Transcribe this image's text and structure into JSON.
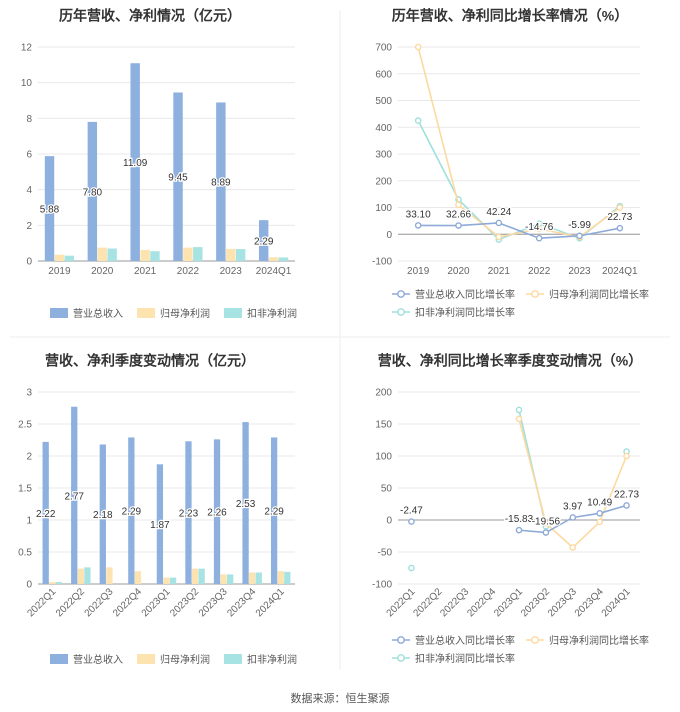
{
  "source": "数据来源：恒生聚源",
  "legend_labels": {
    "rev": "营业总收入",
    "net": "归母净利润",
    "ded": "扣非净利润",
    "rev_g": "营业总收入同比增长率",
    "net_g": "归母净利润同比增长率",
    "ded_g": "扣非净利润同比增长率"
  },
  "colors": {
    "rev": "#8eb0de",
    "net": "#fde3b0",
    "ded": "#a8e3e3",
    "rev_line": "#8eaad8",
    "net_line": "#fdd9a0",
    "ded_line": "#9fe0dc"
  },
  "chart_data": [
    {
      "type": "bar",
      "title": "历年营收、净利情况（亿元）",
      "categories": [
        "2019",
        "2020",
        "2021",
        "2022",
        "2023",
        "2024Q1"
      ],
      "ylim": [
        0,
        12
      ],
      "yticks": [
        0,
        2,
        4,
        6,
        8,
        10,
        12
      ],
      "series": [
        {
          "name": "营业总收入",
          "values": [
            5.88,
            7.8,
            11.09,
            9.45,
            8.89,
            2.29
          ],
          "labels": [
            "5.88",
            "7.80",
            "11.09",
            "9.45",
            "8.89",
            "2.29"
          ]
        },
        {
          "name": "归母净利润",
          "values": [
            0.35,
            0.75,
            0.62,
            0.75,
            0.68,
            0.21
          ]
        },
        {
          "name": "扣非净利润",
          "values": [
            0.3,
            0.7,
            0.55,
            0.78,
            0.67,
            0.2
          ]
        }
      ],
      "legend": "bottom"
    },
    {
      "type": "line",
      "title": "历年营收、净利同比增长率情况（%）",
      "categories": [
        "2019",
        "2020",
        "2021",
        "2022",
        "2023",
        "2024Q1"
      ],
      "ylim": [
        -100,
        700
      ],
      "yticks": [
        -100,
        0,
        100,
        200,
        300,
        400,
        500,
        600,
        700
      ],
      "series": [
        {
          "name": "营业总收入同比增长率",
          "values": [
            33.1,
            32.66,
            42.24,
            -14.76,
            -5.99,
            22.73
          ],
          "labels": [
            "33.10",
            "32.66",
            "42.24",
            "-14.76",
            "-5.99",
            "22.73"
          ]
        },
        {
          "name": "归母净利润同比增长率",
          "values": [
            700,
            110,
            -10,
            20,
            -10,
            100
          ]
        },
        {
          "name": "扣非净利润同比增长率",
          "values": [
            425,
            130,
            -20,
            40,
            -15,
            105
          ]
        }
      ],
      "legend": "bottom"
    },
    {
      "type": "bar",
      "title": "营收、净利季度变动情况（亿元）",
      "categories": [
        "2022Q1",
        "2022Q2",
        "2022Q3",
        "2022Q4",
        "2023Q1",
        "2023Q2",
        "2023Q3",
        "2023Q4",
        "2024Q1"
      ],
      "ylim": [
        0,
        3
      ],
      "yticks": [
        0,
        0.5,
        1,
        1.5,
        2,
        2.5,
        3
      ],
      "series": [
        {
          "name": "营业总收入",
          "values": [
            2.22,
            2.77,
            2.18,
            2.29,
            1.87,
            2.23,
            2.26,
            2.53,
            2.29
          ],
          "labels": [
            "2.22",
            "2.77",
            "2.18",
            "2.29",
            "1.87",
            "2.23",
            "2.26",
            "2.53",
            "2.29"
          ]
        },
        {
          "name": "归母净利润",
          "values": [
            0.03,
            0.24,
            0.26,
            0.2,
            0.1,
            0.24,
            0.15,
            0.18,
            0.2
          ]
        },
        {
          "name": "扣非净利润",
          "values": [
            0.03,
            0.26,
            0.0,
            0.0,
            0.1,
            0.24,
            0.15,
            0.18,
            0.19
          ]
        }
      ],
      "legend": "bottom"
    },
    {
      "type": "line",
      "title": "营收、净利同比增长率季度变动情况（%）",
      "categories": [
        "2022Q1",
        "2022Q2",
        "2022Q3",
        "2022Q4",
        "2023Q1",
        "2023Q2",
        "2023Q3",
        "2023Q4",
        "2024Q1"
      ],
      "ylim": [
        -100,
        200
      ],
      "yticks": [
        -100,
        -50,
        0,
        50,
        100,
        150,
        200
      ],
      "series": [
        {
          "name": "营业总收入同比增长率",
          "values": [
            -2.47,
            null,
            null,
            null,
            -15.83,
            -19.56,
            3.97,
            10.49,
            22.73
          ],
          "labels": [
            "-2.47",
            "",
            "",
            "",
            "-15.83",
            "-19.56",
            "3.97",
            "10.49",
            "22.73"
          ]
        },
        {
          "name": "归母净利润同比增长率",
          "values": [
            null,
            null,
            null,
            null,
            158,
            -5,
            -43,
            -3,
            100
          ]
        },
        {
          "name": "扣非净利润同比增长率",
          "values": [
            -75,
            null,
            null,
            null,
            172,
            -10,
            null,
            null,
            107
          ]
        }
      ],
      "legend": "bottom"
    }
  ]
}
